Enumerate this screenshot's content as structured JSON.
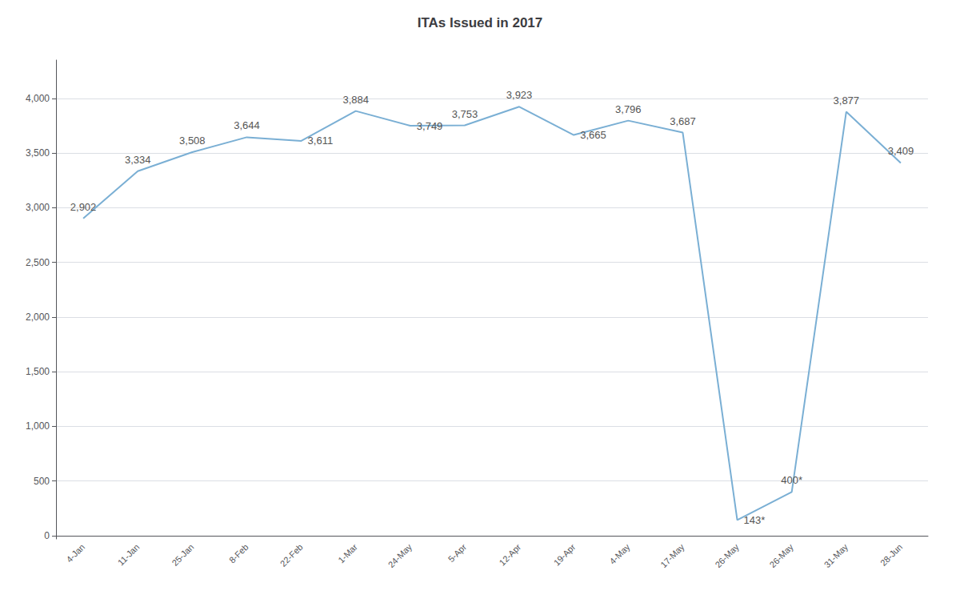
{
  "chart_data": {
    "type": "line",
    "title": "ITAs Issued in 2017",
    "categories": [
      "4-Jan",
      "11-Jan",
      "25-Jan",
      "8-Feb",
      "22-Feb",
      "1-Mar",
      "24-May",
      "5-Apr",
      "12-Apr",
      "19-Apr",
      "4-May",
      "17-May",
      "26-May",
      "26-May",
      "31-May",
      "28-Jun"
    ],
    "values": [
      2902,
      3334,
      3508,
      3644,
      3611,
      3884,
      3749,
      3753,
      3923,
      3665,
      3796,
      3687,
      143,
      400,
      3877,
      3409
    ],
    "value_labels": [
      "2,902",
      "3,334",
      "3,508",
      "3,644",
      "3,611",
      "3,884",
      "3,749",
      "3,753",
      "3,923",
      "3,665",
      "3,796",
      "3,687",
      "143*",
      "400*",
      "3,877",
      "3,409"
    ],
    "data_labels": true,
    "color": "#7aafd4",
    "ylim": [
      -30,
      4350
    ],
    "yticks": [
      0,
      500,
      {
        "value": 1000,
        "label": "1,000"
      },
      {
        "value": 1500,
        "label": "1,500"
      },
      {
        "value": 2000,
        "label": "2,000"
      },
      {
        "value": 2500,
        "label": "2,500"
      },
      {
        "value": 3000,
        "label": "3,000"
      },
      {
        "value": 3500,
        "label": "3,500"
      },
      {
        "value": 4000,
        "label": "4,000"
      }
    ],
    "grid": true
  }
}
